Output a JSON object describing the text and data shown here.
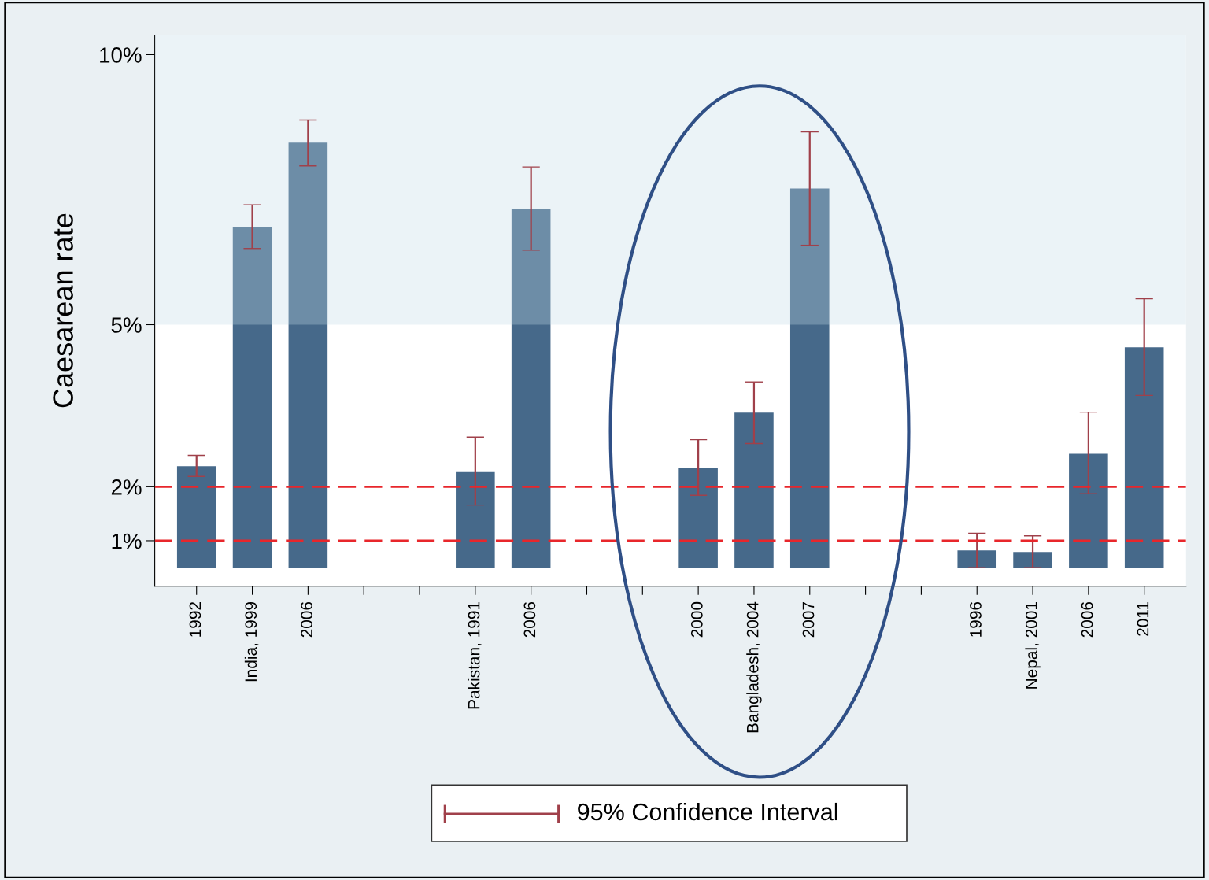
{
  "chart_data": {
    "type": "bar",
    "ylabel": "Caesarean rate",
    "categories": [
      "1992",
      "India, 1999",
      "2006",
      null,
      null,
      "Pakistan, 1991",
      "2006",
      null,
      null,
      "2000",
      "Bangladesh, 2004",
      "2007",
      null,
      null,
      "1996",
      "Nepal, 2001",
      "2006",
      "2011"
    ],
    "base": [
      0.5,
      0.5,
      0.5,
      null,
      null,
      0.5,
      0.5,
      null,
      null,
      0.5,
      0.5,
      0.5,
      null,
      null,
      0.5,
      0.5,
      0.5,
      0.5
    ],
    "values": [
      1.88,
      6.31,
      7.87,
      null,
      null,
      1.77,
      6.64,
      null,
      null,
      1.85,
      2.87,
      7.02,
      null,
      null,
      0.32,
      0.29,
      2.11,
      4.08
    ],
    "errors": [
      [
        2.19,
        2.58
      ],
      [
        6.41,
        7.22
      ],
      [
        7.94,
        8.79
      ],
      null,
      null,
      [
        1.66,
        2.92
      ],
      [
        6.38,
        7.92
      ],
      null,
      null,
      [
        1.84,
        2.87
      ],
      [
        2.8,
        3.94
      ],
      [
        6.47,
        8.57
      ],
      null,
      null,
      [
        0.5,
        1.14
      ],
      [
        0.5,
        1.09
      ],
      [
        1.87,
        3.38
      ],
      [
        3.69,
        5.48
      ]
    ],
    "color": "#46698a",
    "ylim": [
      0.16,
      10.36
    ],
    "yticks": [
      {
        "value": 1,
        "label": "1%"
      },
      {
        "value": 2,
        "label": "2%"
      },
      {
        "value": 5,
        "label": "5%"
      },
      {
        "value": 10,
        "label": "10%"
      }
    ],
    "ref_lines": [
      {
        "axis": "y",
        "value": 2,
        "color": "#e8262b",
        "line_style": "dashed"
      },
      {
        "axis": "y",
        "value": 1,
        "color": "#e8262b",
        "line_style": "dashed"
      }
    ],
    "bands": [
      {
        "axis": "y",
        "from": 5,
        "to": 10.36,
        "color": "#c0dbe6"
      }
    ],
    "annotations": [
      "95% Confidence Interval"
    ],
    "grid": false,
    "legend": false
  }
}
